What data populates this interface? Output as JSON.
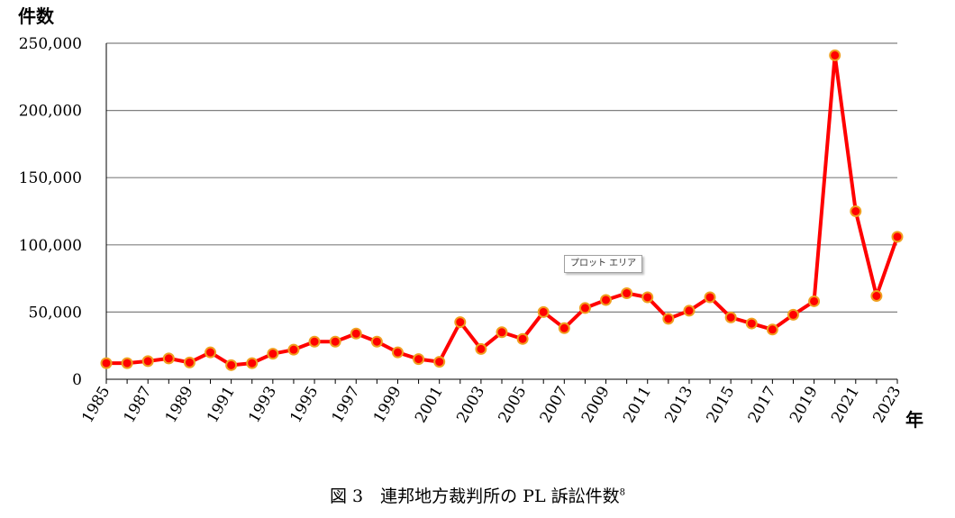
{
  "chart_data": {
    "type": "line",
    "ylabel": "件数",
    "xlabel": "年",
    "ylim": [
      0,
      250000
    ],
    "yticks": [
      0,
      50000,
      100000,
      150000,
      200000,
      250000
    ],
    "ytick_labels": [
      "0",
      "50,000",
      "100,000",
      "150,000",
      "200,000",
      "250,000"
    ],
    "xtick_labels": [
      "1985",
      "1987",
      "1989",
      "1991",
      "1993",
      "1995",
      "1997",
      "1999",
      "2001",
      "2003",
      "2005",
      "2007",
      "2009",
      "2011",
      "2013",
      "2015",
      "2017",
      "2019",
      "2021",
      "2023"
    ],
    "grid": true,
    "line_color": "#ff0000",
    "marker_fill": "#ff0000",
    "marker_edge": "#f0a020",
    "x": [
      1985,
      1986,
      1987,
      1988,
      1989,
      1990,
      1991,
      1992,
      1993,
      1994,
      1995,
      1996,
      1997,
      1998,
      1999,
      2000,
      2001,
      2002,
      2003,
      2004,
      2005,
      2006,
      2007,
      2008,
      2009,
      2010,
      2011,
      2012,
      2013,
      2014,
      2015,
      2016,
      2017,
      2018,
      2019,
      2020,
      2021,
      2022,
      2023
    ],
    "values": [
      12000,
      12000,
      13500,
      15500,
      12500,
      20000,
      10500,
      12000,
      19000,
      22000,
      28000,
      28000,
      34000,
      28000,
      20000,
      15000,
      13000,
      42500,
      22500,
      35000,
      30000,
      50000,
      38000,
      53000,
      59000,
      64000,
      61000,
      45000,
      51000,
      61000,
      46000,
      41500,
      37000,
      48000,
      58000,
      241000,
      125000,
      62000,
      106000
    ]
  },
  "tooltip": "プロット エリア",
  "caption": {
    "text": "図 3　連邦地方裁判所の PL 訴訟件数",
    "footnote": "8"
  }
}
